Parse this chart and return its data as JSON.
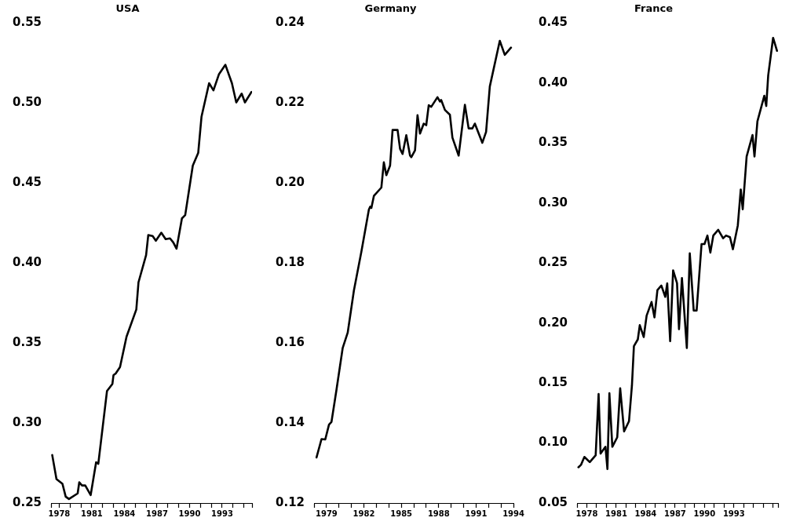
{
  "chart_data": [
    {
      "type": "line",
      "title": "USA",
      "x": [
        1977.36,
        1977.75,
        1978.3,
        1978.6,
        1978.9,
        1979.7,
        1979.85,
        1980.1,
        1980.4,
        1980.9,
        1981.4,
        1981.6,
        1982.4,
        1982.9,
        1983.0,
        1983.2,
        1983.6,
        1984.2,
        1985.1,
        1985.3,
        1986.0,
        1986.2,
        1986.6,
        1986.9,
        1987.4,
        1987.8,
        1988.2,
        1988.5,
        1988.8,
        1989.3,
        1989.6,
        1990.3,
        1990.8,
        1991.1,
        1991.8,
        1992.2,
        1992.7,
        1993.3,
        1993.9,
        1994.3,
        1994.8,
        1995.1,
        1995.7
      ],
      "series": [
        {
          "color": "#000000",
          "values": [
            0.28,
            0.265,
            0.262,
            0.254,
            0.2525,
            0.256,
            0.263,
            0.261,
            0.261,
            0.255,
            0.2755,
            0.2745,
            0.32,
            0.3245,
            0.33,
            0.331,
            0.335,
            0.354,
            0.371,
            0.388,
            0.405,
            0.4175,
            0.417,
            0.414,
            0.419,
            0.415,
            0.4155,
            0.413,
            0.409,
            0.428,
            0.43,
            0.461,
            0.469,
            0.4915,
            0.5125,
            0.508,
            0.518,
            0.524,
            0.5125,
            0.5005,
            0.506,
            0.5005,
            0.507
          ]
        }
      ],
      "xlim": [
        1977.25,
        1995.75
      ],
      "xticks": [
        {
          "value": 1977.25,
          "label": null
        },
        1978,
        {
          "value": 1979,
          "label": null
        },
        {
          "value": 1980,
          "label": null
        },
        1981,
        {
          "value": 1982,
          "label": null
        },
        {
          "value": 1983,
          "label": null
        },
        1984,
        {
          "value": 1985,
          "label": null
        },
        {
          "value": 1986,
          "label": null
        },
        1987,
        {
          "value": 1988,
          "label": null
        },
        {
          "value": 1989,
          "label": null
        },
        1990,
        {
          "value": 1991,
          "label": null
        },
        {
          "value": 1992,
          "label": null
        },
        1993,
        {
          "value": 1994,
          "label": null
        },
        {
          "value": 1995,
          "label": null
        },
        {
          "value": 1995.75,
          "label": null
        }
      ],
      "ylim": [
        0.25,
        0.55
      ],
      "yticks": [
        {
          "value": 0.25,
          "label": "0.25"
        },
        {
          "value": 0.3,
          "label": "0.30"
        },
        {
          "value": 0.35,
          "label": "0.35"
        },
        {
          "value": 0.4,
          "label": "0.40"
        },
        {
          "value": 0.45,
          "label": "0.45"
        },
        {
          "value": 0.5,
          "label": "0.50"
        },
        {
          "value": 0.55,
          "label": "0.55"
        }
      ],
      "grid": false,
      "legend": false,
      "marker": "none",
      "line_style": "solid"
    },
    {
      "type": "line",
      "title": "Germany",
      "x": [
        1978.2,
        1978.6,
        1978.9,
        1979.2,
        1979.4,
        1979.8,
        1980.3,
        1980.7,
        1981.2,
        1981.8,
        1982.4,
        1982.5,
        1982.6,
        1982.8,
        1983.4,
        1983.6,
        1983.8,
        1984.1,
        1984.3,
        1984.7,
        1984.9,
        1985.1,
        1985.4,
        1985.7,
        1985.8,
        1986.1,
        1986.3,
        1986.5,
        1986.8,
        1987.0,
        1987.2,
        1987.4,
        1987.9,
        1988.1,
        1988.2,
        1988.5,
        1988.9,
        1989.1,
        1989.6,
        1990.1,
        1990.4,
        1990.7,
        1990.9,
        1991.5,
        1991.8,
        1992.1,
        1992.9,
        1993.3,
        1993.8
      ],
      "series": [
        {
          "color": "#000000",
          "values": [
            0.1314,
            0.136,
            0.1359,
            0.1396,
            0.1403,
            0.1483,
            0.1588,
            0.1626,
            0.1732,
            0.1829,
            0.1934,
            0.1941,
            0.1938,
            0.1968,
            0.1989,
            0.2052,
            0.202,
            0.2044,
            0.2133,
            0.2133,
            0.2086,
            0.2073,
            0.212,
            0.2069,
            0.2065,
            0.2082,
            0.217,
            0.2124,
            0.2149,
            0.2145,
            0.2195,
            0.2191,
            0.2215,
            0.2204,
            0.2208,
            0.2183,
            0.2171,
            0.2114,
            0.2069,
            0.2196,
            0.2137,
            0.2137,
            0.2149,
            0.2101,
            0.2128,
            0.2242,
            0.2356,
            0.2321,
            0.2339
          ]
        }
      ],
      "xlim": [
        1978,
        1994
      ],
      "xticks": [
        {
          "value": 1978,
          "label": null
        },
        1979,
        {
          "value": 1980,
          "label": null
        },
        {
          "value": 1981,
          "label": null
        },
        1982,
        {
          "value": 1983,
          "label": null
        },
        {
          "value": 1984,
          "label": null
        },
        1985,
        {
          "value": 1986,
          "label": null
        },
        {
          "value": 1987,
          "label": null
        },
        1988,
        {
          "value": 1989,
          "label": null
        },
        {
          "value": 1990,
          "label": null
        },
        1991,
        {
          "value": 1992,
          "label": null
        },
        {
          "value": 1993,
          "label": null
        },
        1994
      ],
      "ylim": [
        0.12,
        0.24
      ],
      "yticks": [
        0.12,
        0.14,
        0.16,
        0.18,
        {
          "value": 0.2,
          "label": "0.20"
        },
        0.22,
        0.24
      ],
      "grid": false,
      "legend": false,
      "marker": "none",
      "line_style": "solid"
    },
    {
      "type": "line",
      "title": "France",
      "x": [
        1977.14,
        1977.4,
        1977.75,
        1978.3,
        1978.9,
        1979.2,
        1979.4,
        1979.9,
        1980.1,
        1980.3,
        1980.6,
        1981.1,
        1981.4,
        1981.8,
        1982.3,
        1982.6,
        1982.8,
        1983.2,
        1983.4,
        1983.8,
        1984.1,
        1984.6,
        1984.9,
        1985.2,
        1985.6,
        1986.0,
        1986.2,
        1986.5,
        1986.8,
        1987.2,
        1987.4,
        1987.7,
        1988.2,
        1988.5,
        1988.9,
        1989.2,
        1989.7,
        1990.0,
        1990.3,
        1990.6,
        1990.9,
        1991.4,
        1991.9,
        1992.2,
        1992.6,
        1992.9,
        1993.4,
        1993.7,
        1993.9,
        1994.3,
        1994.9,
        1995.1,
        1995.4,
        1996.1,
        1996.3,
        1996.5,
        1997.0,
        1997.4
      ],
      "series": [
        {
          "color": "#000000",
          "values": [
            0.0798,
            0.0818,
            0.0884,
            0.0841,
            0.0898,
            0.1409,
            0.0912,
            0.0969,
            0.0784,
            0.1415,
            0.0969,
            0.1048,
            0.1457,
            0.1097,
            0.1182,
            0.148,
            0.1807,
            0.1864,
            0.1983,
            0.1884,
            0.2063,
            0.2176,
            0.2048,
            0.2276,
            0.2313,
            0.2219,
            0.2332,
            0.1849,
            0.244,
            0.2332,
            0.1949,
            0.2375,
            0.1793,
            0.2582,
            0.2105,
            0.2105,
            0.2659,
            0.2659,
            0.273,
            0.2588,
            0.273,
            0.2778,
            0.2707,
            0.273,
            0.2716,
            0.2616,
            0.2815,
            0.3114,
            0.2949,
            0.3389,
            0.3568,
            0.3389,
            0.3682,
            0.3895,
            0.381,
            0.4065,
            0.4378,
            0.427
          ]
        }
      ],
      "xlim": [
        1977,
        1997.5
      ],
      "xticks": [
        {
          "value": 1977,
          "label": null
        },
        1978,
        {
          "value": 1979,
          "label": null
        },
        {
          "value": 1980,
          "label": null
        },
        1981,
        {
          "value": 1982,
          "label": null
        },
        {
          "value": 1983,
          "label": null
        },
        1984,
        {
          "value": 1985,
          "label": null
        },
        {
          "value": 1986,
          "label": null
        },
        1987,
        {
          "value": 1988,
          "label": null
        },
        {
          "value": 1989,
          "label": null
        },
        1990,
        {
          "value": 1991,
          "label": null
        },
        {
          "value": 1992,
          "label": null
        },
        1993,
        {
          "value": 1994,
          "label": null
        },
        {
          "value": 1995,
          "label": null
        },
        {
          "value": 1996,
          "label": null
        },
        {
          "value": 1997,
          "label": null
        },
        {
          "value": 1997.5,
          "label": null
        }
      ],
      "ylim": [
        0.05,
        0.45
      ],
      "yticks": [
        {
          "value": 0.05,
          "label": "0.05"
        },
        {
          "value": 0.1,
          "label": "0.10"
        },
        {
          "value": 0.15,
          "label": "0.15"
        },
        {
          "value": 0.2,
          "label": "0.20"
        },
        {
          "value": 0.25,
          "label": "0.25"
        },
        {
          "value": 0.3,
          "label": "0.30"
        },
        {
          "value": 0.35,
          "label": "0.35"
        },
        {
          "value": 0.4,
          "label": "0.40"
        },
        {
          "value": 0.45,
          "label": "0.45"
        }
      ],
      "grid": false,
      "legend": false,
      "marker": "none",
      "line_style": "solid"
    }
  ]
}
